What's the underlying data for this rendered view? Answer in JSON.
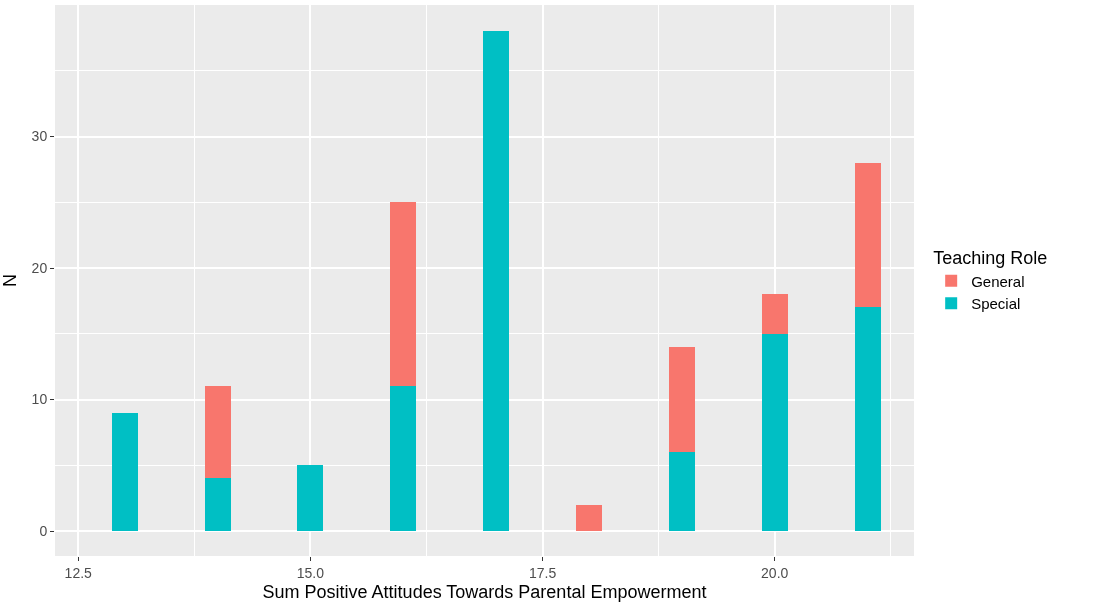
{
  "chart_data": {
    "type": "bar",
    "xlabel": "Sum Positive Attitudes Towards Parental Empowerment",
    "ylabel": "N",
    "legend_title": "Teaching Role",
    "x": [
      13,
      14,
      15,
      16,
      17,
      18,
      19,
      20,
      21
    ],
    "stacked": true,
    "series": [
      {
        "name": "Special",
        "color": "#00bfc4",
        "values": [
          9,
          4,
          5,
          11,
          38,
          0,
          6,
          15,
          17
        ]
      },
      {
        "name": "General",
        "color": "#f8766d",
        "values": [
          0,
          7,
          0,
          14,
          0,
          2,
          8,
          3,
          11
        ]
      }
    ],
    "xlim": [
      12.25,
      21.5
    ],
    "xticks": [
      12.5,
      {
        "value": 15,
        "label": "15.0"
      },
      17.5,
      {
        "value": 20,
        "label": "20.0"
      }
    ],
    "ylim": [
      -1.9,
      40
    ],
    "yticks": [
      0,
      10,
      20,
      30
    ],
    "grid": true,
    "legend": "right"
  }
}
